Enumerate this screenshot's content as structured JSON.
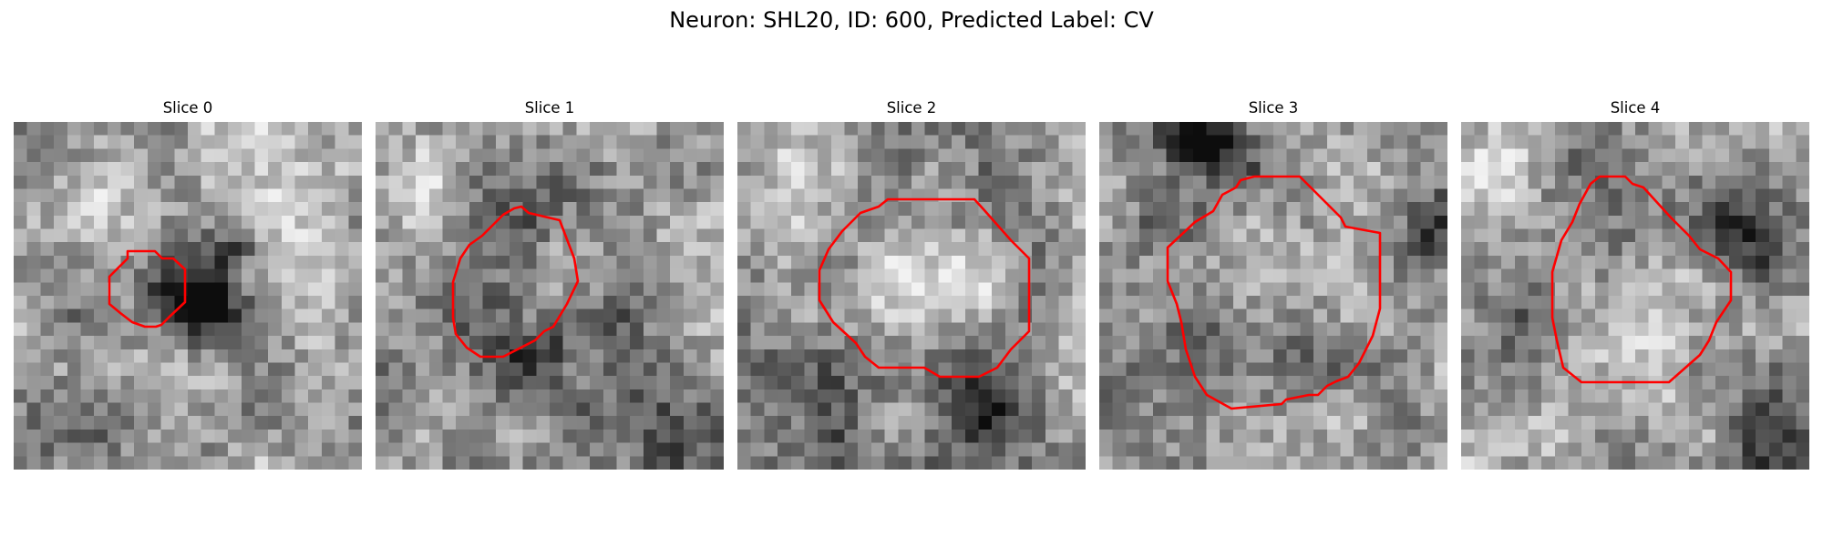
{
  "figure": {
    "title": "Neuron: SHL20, ID: 600, Predicted Label: CV"
  },
  "colors": {
    "contour": "#ff0000",
    "background": "#ffffff"
  },
  "slices": [
    {
      "title": "Slice 0",
      "image_seed": 11,
      "dark_blobs": [
        [
          0.52,
          0.5,
          0.13,
          0.55
        ],
        [
          0.64,
          0.36,
          0.06,
          0.35
        ],
        [
          0.15,
          0.85,
          0.2,
          0.2
        ]
      ],
      "bright_blobs": [
        [
          0.7,
          0.15,
          0.2,
          0.2
        ],
        [
          0.2,
          0.25,
          0.15,
          0.15
        ]
      ]
    },
    {
      "title": "Slice 1",
      "image_seed": 23,
      "dark_blobs": [
        [
          0.5,
          0.45,
          0.3,
          0.28
        ],
        [
          0.45,
          0.7,
          0.12,
          0.35
        ],
        [
          0.8,
          0.9,
          0.15,
          0.25
        ]
      ],
      "bright_blobs": [
        [
          0.55,
          0.42,
          0.14,
          0.45
        ],
        [
          0.12,
          0.2,
          0.15,
          0.2
        ]
      ]
    },
    {
      "title": "Slice 2",
      "image_seed": 37,
      "dark_blobs": [
        [
          0.5,
          0.45,
          0.33,
          0.22
        ],
        [
          0.7,
          0.83,
          0.14,
          0.45
        ],
        [
          0.25,
          0.88,
          0.2,
          0.2
        ]
      ],
      "bright_blobs": [
        [
          0.55,
          0.45,
          0.2,
          0.45
        ],
        [
          0.2,
          0.15,
          0.2,
          0.15
        ]
      ]
    },
    {
      "title": "Slice 3",
      "image_seed": 53,
      "dark_blobs": [
        [
          0.45,
          0.4,
          0.3,
          0.26
        ],
        [
          0.3,
          0.05,
          0.12,
          0.55
        ],
        [
          0.92,
          0.3,
          0.1,
          0.35
        ]
      ],
      "bright_blobs": [
        [
          0.5,
          0.4,
          0.2,
          0.4
        ],
        [
          0.75,
          0.15,
          0.15,
          0.2
        ]
      ]
    },
    {
      "title": "Slice 4",
      "image_seed": 71,
      "dark_blobs": [
        [
          0.5,
          0.35,
          0.28,
          0.22
        ],
        [
          0.82,
          0.3,
          0.12,
          0.45
        ],
        [
          0.15,
          0.55,
          0.12,
          0.25
        ],
        [
          0.9,
          0.9,
          0.15,
          0.35
        ]
      ],
      "bright_blobs": [
        [
          0.45,
          0.55,
          0.2,
          0.35
        ],
        [
          0.1,
          0.15,
          0.15,
          0.25
        ]
      ]
    }
  ]
}
